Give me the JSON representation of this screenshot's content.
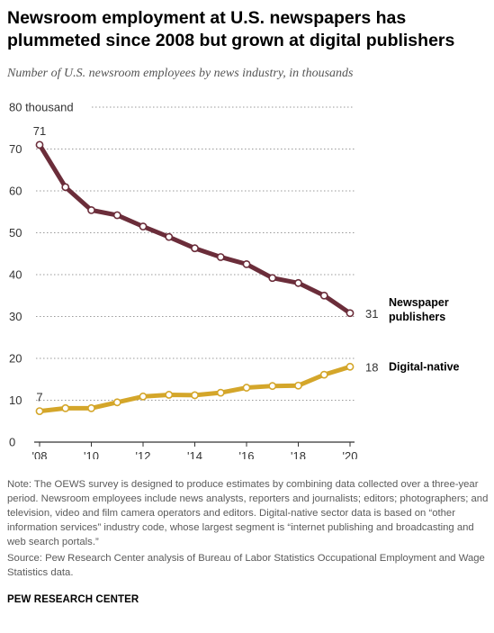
{
  "header": {
    "title": "Newsroom employment at U.S. newspapers has plummeted since 2008 but grown at digital publishers",
    "subtitle": "Number of U.S. newsroom employees by news industry, in thousands"
  },
  "footer": {
    "note": "Note: The OEWS survey is designed to produce estimates by combining data collected over a three-year period. Newsroom employees include news analysts, reporters and journalists; editors; photographers; and television, video and film camera operators and editors. Digital-native sector data is based on “other information services” industry code, whose largest segment is “internet publishing and broadcasting and web search portals.”",
    "source": "Source: Pew Research Center analysis of Bureau of Labor Statistics Occupational Employment and Wage Statistics data.",
    "brand": "PEW RESEARCH CENTER"
  },
  "chart_data": {
    "type": "line",
    "x": [
      2008,
      2009,
      2010,
      2011,
      2012,
      2013,
      2014,
      2015,
      2016,
      2017,
      2018,
      2019,
      2020
    ],
    "x_tick_values": [
      2008,
      2010,
      2012,
      2014,
      2016,
      2018,
      2020
    ],
    "x_tick_labels": [
      "'08",
      "'10",
      "'12",
      "'14",
      "'16",
      "'18",
      "'20"
    ],
    "ylim": [
      0,
      80
    ],
    "y_ticks": [
      0,
      10,
      20,
      30,
      40,
      50,
      60,
      70,
      80
    ],
    "y_tick_labels": [
      "0",
      "10",
      "20",
      "30",
      "40",
      "50",
      "60",
      "70",
      "80 thousand"
    ],
    "grid": "horizontal dotted",
    "series": [
      {
        "name": "Newspaper publishers",
        "name_lines": [
          "Newspaper",
          "publishers"
        ],
        "color": "#6b2d3a",
        "values": [
          71,
          60.9,
          55.4,
          54.2,
          51.5,
          49,
          46.3,
          44.2,
          42.5,
          39.2,
          38,
          35,
          30.8
        ],
        "start_label": "71",
        "end_label": "31"
      },
      {
        "name": "Digital-native",
        "name_lines": [
          "Digital-native"
        ],
        "color": "#d4a62a",
        "values": [
          7.4,
          8.1,
          8.1,
          9.5,
          10.9,
          11.3,
          11.2,
          11.8,
          13,
          13.4,
          13.5,
          16.1,
          18
        ],
        "start_label": "7",
        "end_label": "18"
      }
    ]
  }
}
